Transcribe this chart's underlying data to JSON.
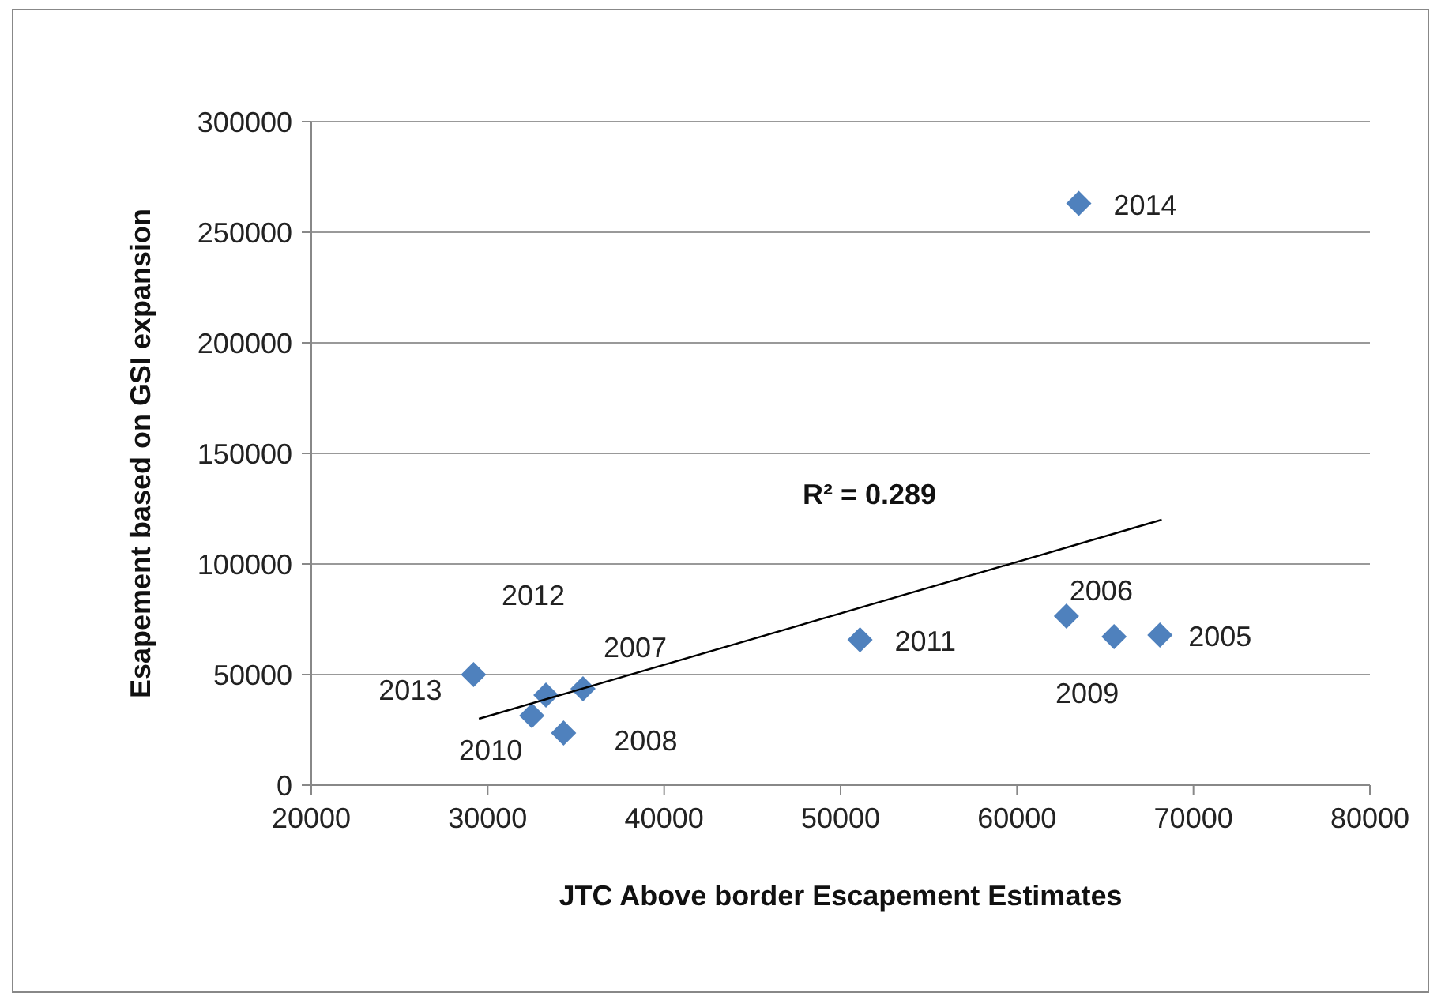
{
  "chart_data": {
    "type": "scatter",
    "xlabel": "JTC Above border Escapement Estimates",
    "ylabel": "Esapement based on GSI expansion",
    "xlim": [
      20000,
      80000
    ],
    "xticks": [
      20000,
      30000,
      40000,
      50000,
      60000,
      70000,
      80000
    ],
    "ylim": [
      0,
      300000
    ],
    "yticks": [
      0,
      50000,
      100000,
      150000,
      200000,
      250000,
      300000
    ],
    "grid": "y",
    "marker": "diamond",
    "annotations": [
      "R² = 0.289",
      {
        "text": "2014",
        "x": 63500,
        "y": 263000
      },
      {
        "text": "2011",
        "x": 51100,
        "y": 65700
      },
      {
        "text": "2006",
        "x": 62800,
        "y": 76400
      },
      {
        "text": "2009",
        "x": 65500,
        "y": 67100
      },
      {
        "text": "2005",
        "x": 68100,
        "y": 67900
      },
      {
        "text": "2013",
        "x": 29200,
        "y": 50000
      },
      {
        "text": "2012",
        "x": 33300,
        "y": 40700
      },
      {
        "text": "2010",
        "x": 32500,
        "y": 31400
      },
      {
        "text": "2007",
        "x": 35400,
        "y": 43600
      },
      {
        "text": "2008",
        "x": 34300,
        "y": 23600
      }
    ],
    "series": [
      {
        "color": "#4f81bd",
        "x": [
          63500,
          51100,
          62800,
          65500,
          68100,
          29200,
          33300,
          32500,
          35400,
          34300
        ],
        "values": [
          263000,
          65700,
          76400,
          67100,
          67900,
          50000,
          40700,
          31400,
          43600,
          23600
        ]
      },
      {
        "type": "line",
        "color": "#000000",
        "marker": "none",
        "line_style": "solid",
        "x": [
          29500,
          68200
        ],
        "values": [
          30000,
          120000
        ]
      }
    ]
  }
}
